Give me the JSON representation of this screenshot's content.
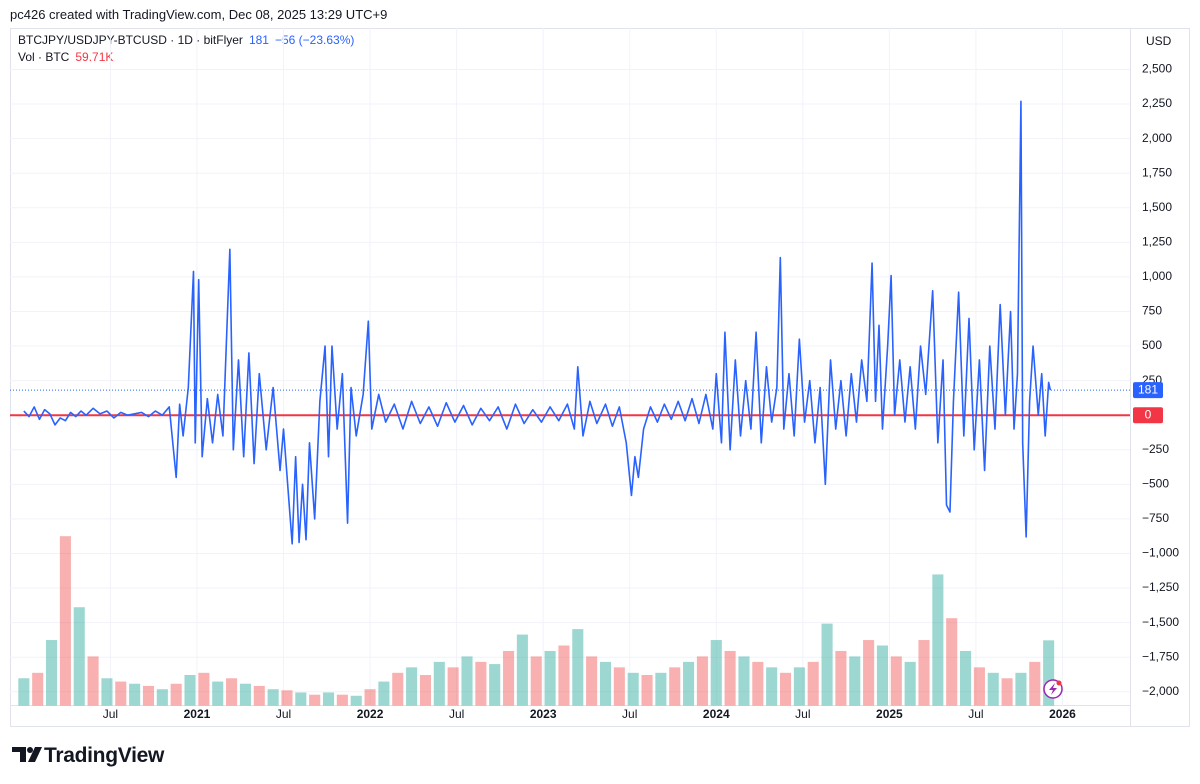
{
  "header": {
    "credit": "pc426 created with TradingView.com, Dec 08, 2025 13:29 UTC+9"
  },
  "chart_data": {
    "type": "line",
    "title": "BTCJPY/USDJPY-BTCUSD · 1D · bitFlyer",
    "change": "−56 (−23.63%)",
    "volume_title": "Vol · BTC",
    "volume_last_label": "59.71K",
    "y_axis_label": "USD",
    "grid": true,
    "xlim": [
      2019.92,
      2026.39
    ],
    "xticks": [
      {
        "value": 2020.5,
        "label": "Jul"
      },
      2021,
      {
        "value": 2021.5,
        "label": "Jul"
      },
      2022,
      {
        "value": 2022.5,
        "label": "Jul"
      },
      2023,
      {
        "value": 2023.5,
        "label": "Jul"
      },
      2024,
      {
        "value": 2024.5,
        "label": "Jul"
      },
      2025,
      {
        "value": 2025.5,
        "label": "Jul"
      },
      2026
    ],
    "ylim": [
      -2100,
      2800
    ],
    "yticks": [
      {
        "value": 2500,
        "label": "2,500"
      },
      {
        "value": 2250,
        "label": "2,250"
      },
      {
        "value": 2000,
        "label": "2,000"
      },
      {
        "value": 1750,
        "label": "1,750"
      },
      {
        "value": 1500,
        "label": "1,500"
      },
      {
        "value": 1250,
        "label": "1,250"
      },
      {
        "value": 1000,
        "label": "1,000"
      },
      750,
      500,
      250,
      0,
      {
        "value": -250,
        "label": "−250"
      },
      {
        "value": -500,
        "label": "−500"
      },
      {
        "value": -750,
        "label": "−750"
      },
      {
        "value": -1000,
        "label": "−1,000"
      },
      {
        "value": -1250,
        "label": "−1,250"
      },
      {
        "value": -1500,
        "label": "−1,500"
      },
      {
        "value": -1750,
        "label": "−1,750"
      },
      {
        "value": -2000,
        "label": "−2,000"
      }
    ],
    "hline": {
      "value": 0,
      "color": "#f23645"
    },
    "series": [
      {
        "color": "#2962ff",
        "x": [
          2020.0,
          2020.03,
          2020.06,
          2020.09,
          2020.12,
          2020.15,
          2020.18,
          2020.21,
          2020.24,
          2020.27,
          2020.3,
          2020.33,
          2020.36,
          2020.4,
          2020.44,
          2020.48,
          2020.52,
          2020.56,
          2020.6,
          2020.64,
          2020.68,
          2020.72,
          2020.76,
          2020.8,
          2020.84,
          2020.88,
          2020.9,
          2020.92,
          2020.95,
          2020.98,
          2020.99,
          2021.01,
          2021.03,
          2021.06,
          2021.09,
          2021.12,
          2021.15,
          2021.19,
          2021.21,
          2021.24,
          2021.27,
          2021.3,
          2021.33,
          2021.36,
          2021.4,
          2021.44,
          2021.48,
          2021.5,
          2021.53,
          2021.55,
          2021.57,
          2021.59,
          2021.61,
          2021.63,
          2021.65,
          2021.68,
          2021.71,
          2021.74,
          2021.76,
          2021.78,
          2021.81,
          2021.84,
          2021.87,
          2021.89,
          2021.92,
          2021.96,
          2021.99,
          2022.01,
          2022.05,
          2022.09,
          2022.14,
          2022.19,
          2022.24,
          2022.29,
          2022.34,
          2022.39,
          2022.44,
          2022.49,
          2022.54,
          2022.59,
          2022.64,
          2022.69,
          2022.74,
          2022.79,
          2022.84,
          2022.89,
          2022.94,
          2022.99,
          2023.04,
          2023.09,
          2023.14,
          2023.18,
          2023.2,
          2023.23,
          2023.27,
          2023.31,
          2023.36,
          2023.4,
          2023.44,
          2023.48,
          2023.51,
          2023.53,
          2023.55,
          2023.58,
          2023.62,
          2023.66,
          2023.7,
          2023.74,
          2023.78,
          2023.82,
          2023.86,
          2023.9,
          2023.94,
          2023.98,
          2024.0,
          2024.03,
          2024.05,
          2024.08,
          2024.11,
          2024.14,
          2024.17,
          2024.2,
          2024.23,
          2024.26,
          2024.29,
          2024.32,
          2024.35,
          2024.37,
          2024.39,
          2024.42,
          2024.45,
          2024.48,
          2024.51,
          2024.54,
          2024.57,
          2024.6,
          2024.63,
          2024.66,
          2024.69,
          2024.72,
          2024.75,
          2024.78,
          2024.81,
          2024.84,
          2024.87,
          2024.9,
          2024.92,
          2024.94,
          2024.96,
          2024.99,
          2025.01,
          2025.03,
          2025.06,
          2025.09,
          2025.12,
          2025.15,
          2025.18,
          2025.21,
          2025.25,
          2025.28,
          2025.31,
          2025.33,
          2025.35,
          2025.37,
          2025.4,
          2025.43,
          2025.46,
          2025.49,
          2025.52,
          2025.55,
          2025.58,
          2025.61,
          2025.64,
          2025.67,
          2025.7,
          2025.72,
          2025.74,
          2025.76,
          2025.77,
          2025.79,
          2025.81,
          2025.83,
          2025.86,
          2025.88,
          2025.9,
          2025.92,
          2025.93
        ],
        "values": [
          30,
          -10,
          60,
          -30,
          40,
          10,
          -70,
          -20,
          -40,
          20,
          -10,
          30,
          0,
          50,
          10,
          30,
          -20,
          20,
          0,
          10,
          20,
          -10,
          30,
          0,
          60,
          -450,
          80,
          -150,
          200,
          1040,
          -200,
          980,
          -300,
          120,
          -200,
          150,
          -150,
          1200,
          -250,
          400,
          -300,
          450,
          -350,
          300,
          -250,
          200,
          -400,
          -100,
          -600,
          -930,
          -300,
          -920,
          -500,
          -900,
          -200,
          -750,
          100,
          500,
          -300,
          500,
          -100,
          300,
          -780,
          200,
          -150,
          150,
          680,
          -100,
          150,
          -50,
          80,
          -100,
          100,
          -60,
          60,
          -80,
          90,
          -50,
          70,
          -70,
          50,
          -40,
          60,
          -100,
          80,
          -60,
          40,
          -50,
          60,
          -40,
          80,
          -100,
          350,
          -150,
          100,
          -60,
          80,
          -80,
          60,
          -200,
          -580,
          -300,
          -450,
          -100,
          60,
          -50,
          80,
          -30,
          100,
          -40,
          120,
          -60,
          150,
          -100,
          300,
          -200,
          600,
          -250,
          400,
          -150,
          250,
          -100,
          600,
          -200,
          350,
          -50,
          200,
          1140,
          -100,
          300,
          -150,
          550,
          -50,
          250,
          -200,
          200,
          -500,
          400,
          -100,
          250,
          -150,
          300,
          -50,
          400,
          100,
          1100,
          100,
          650,
          -100,
          500,
          1010,
          0,
          400,
          -50,
          350,
          -100,
          500,
          150,
          900,
          -200,
          400,
          -650,
          -700,
          100,
          890,
          -150,
          700,
          -250,
          400,
          -400,
          500,
          -100,
          800,
          0,
          750,
          -100,
          300,
          2270,
          -200,
          -880,
          100,
          500,
          0,
          300,
          -150,
          237,
          181
        ]
      }
    ],
    "volume_ylim": [
      0,
      620000
    ],
    "volume": {
      "colors": [
        "#26a69a",
        "#ef5350"
      ],
      "x": [
        2020.0,
        2020.08,
        2020.16,
        2020.24,
        2020.32,
        2020.4,
        2020.48,
        2020.56,
        2020.64,
        2020.72,
        2020.8,
        2020.88,
        2020.96,
        2021.04,
        2021.12,
        2021.2,
        2021.28,
        2021.36,
        2021.44,
        2021.52,
        2021.6,
        2021.68,
        2021.76,
        2021.84,
        2021.92,
        2022.0,
        2022.08,
        2022.16,
        2022.24,
        2022.32,
        2022.4,
        2022.48,
        2022.56,
        2022.64,
        2022.72,
        2022.8,
        2022.88,
        2022.96,
        2023.04,
        2023.12,
        2023.2,
        2023.28,
        2023.36,
        2023.44,
        2023.52,
        2023.6,
        2023.68,
        2023.76,
        2023.84,
        2023.92,
        2024.0,
        2024.08,
        2024.16,
        2024.24,
        2024.32,
        2024.4,
        2024.48,
        2024.56,
        2024.64,
        2024.72,
        2024.8,
        2024.88,
        2024.96,
        2025.04,
        2025.12,
        2025.2,
        2025.28,
        2025.36,
        2025.44,
        2025.52,
        2025.6,
        2025.68,
        2025.76,
        2025.84,
        2025.92
      ],
      "values": [
        25000,
        30000,
        60000,
        155000,
        90000,
        45000,
        25000,
        22000,
        20000,
        18000,
        15000,
        20000,
        28000,
        30000,
        22000,
        25000,
        20000,
        18000,
        15000,
        14000,
        12000,
        10000,
        12000,
        10000,
        9000,
        15000,
        22000,
        30000,
        35000,
        28000,
        40000,
        35000,
        45000,
        40000,
        38000,
        50000,
        65000,
        45000,
        50000,
        55000,
        70000,
        45000,
        40000,
        35000,
        30000,
        28000,
        30000,
        35000,
        40000,
        45000,
        60000,
        50000,
        45000,
        40000,
        35000,
        30000,
        35000,
        40000,
        75000,
        50000,
        45000,
        60000,
        55000,
        45000,
        40000,
        60000,
        120000,
        80000,
        50000,
        35000,
        30000,
        25000,
        30000,
        40000,
        59710
      ]
    }
  },
  "footer": {
    "brand": "TradingView"
  }
}
